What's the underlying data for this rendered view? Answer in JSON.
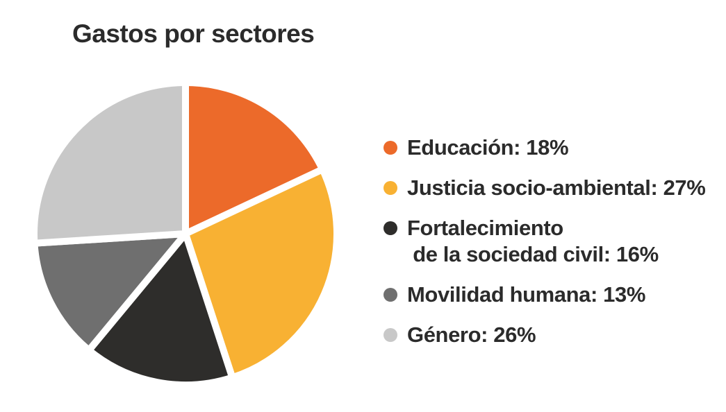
{
  "chart_data": {
    "type": "pie",
    "title": "Gastos por sectores",
    "slices": [
      {
        "label": "Educación: 18%",
        "value": 18,
        "color": "#ec6a2a"
      },
      {
        "label": "Justicia socio-ambiental: 27%",
        "value": 27,
        "color": "#f8b133"
      },
      {
        "label": "Fortalecimiento\n de la sociedad civil: 16%",
        "value": 16,
        "color": "#2e2d2b"
      },
      {
        "label": "Movilidad humana: 13%",
        "value": 13,
        "color": "#6f6f6f"
      },
      {
        "label": "Género: 26%",
        "value": 26,
        "color": "#c8c8c8"
      }
    ],
    "start_angle": "top, clockwise",
    "legend_position": "right"
  }
}
